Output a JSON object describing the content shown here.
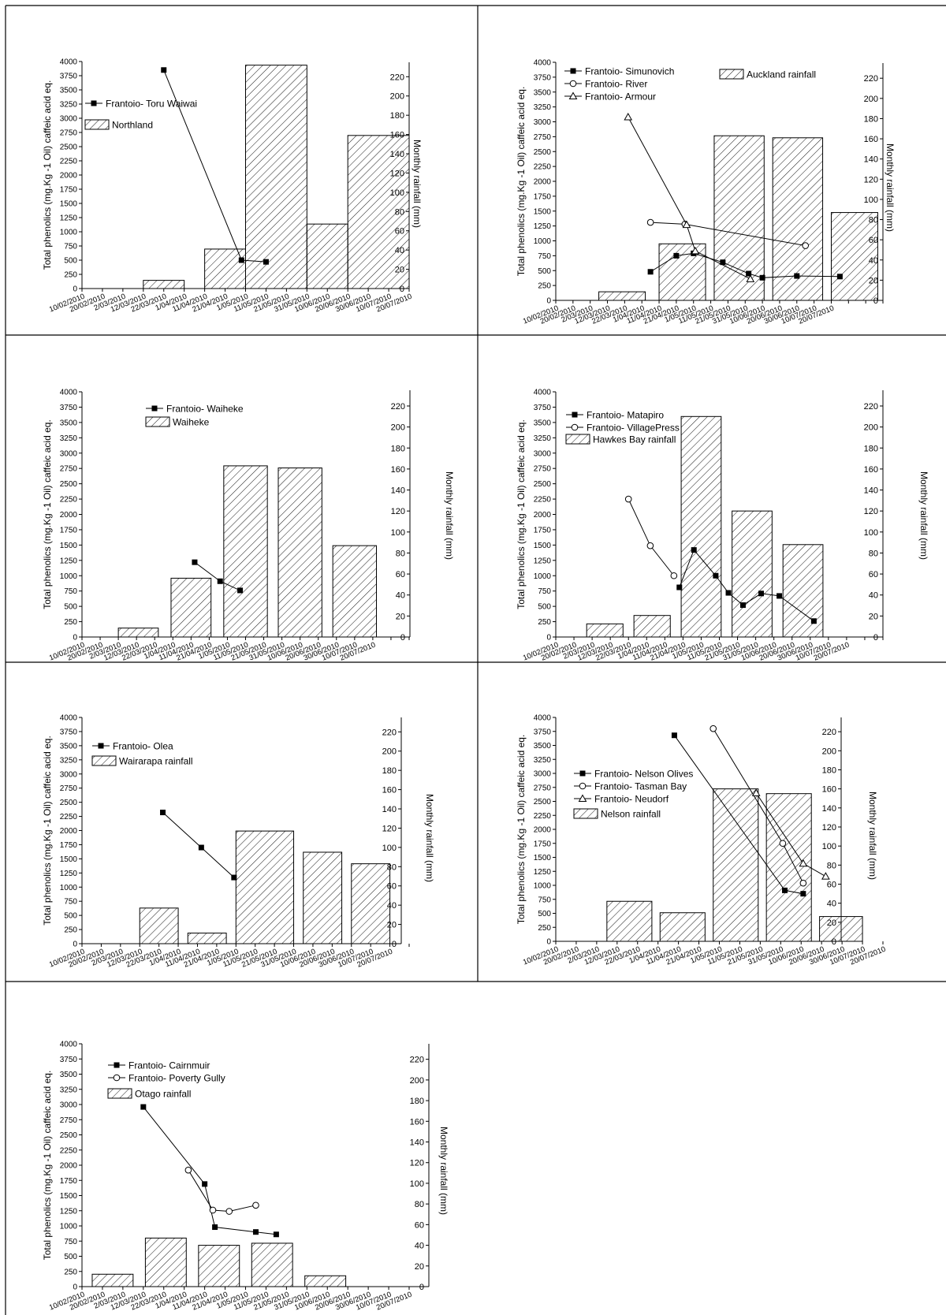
{
  "dates": [
    "10/02/2010",
    "20/02/2010",
    "2/03/2010",
    "12/03/2010",
    "22/03/2010",
    "1/04/2010",
    "11/04/2010",
    "21/04/2010",
    "1/05/2010",
    "11/05/2010",
    "21/05/2010",
    "31/05/2010",
    "10/06/2010",
    "20/06/2010",
    "30/06/2010",
    "10/07/2010",
    "20/07/2010"
  ],
  "chart_data": [
    {
      "type": "bar+line",
      "panel": "Northland",
      "ylabel": "Total phenolics (mg.Kg -1 Oil) caffeic acid eq.",
      "y2label": "Monthly rainfall (mm)",
      "ylim": [
        0,
        4000
      ],
      "y2lim": [
        0,
        235
      ],
      "rainfall": {
        "name": "Northland",
        "bars": [
          {
            "from": 3,
            "to": 5,
            "value": 8.5
          },
          {
            "from": 6,
            "to": 8,
            "value": 41
          },
          {
            "from": 8,
            "to": 11,
            "value": 232
          },
          {
            "from": 11,
            "to": 13,
            "value": 67
          },
          {
            "from": 13,
            "to": 16,
            "value": 159
          }
        ]
      },
      "series": [
        {
          "name": "Frantoio- Toru Waiwai",
          "marker": "square",
          "points": [
            [
              4,
              3850
            ],
            [
              7.8,
              500
            ],
            [
              9,
              470
            ]
          ]
        }
      ]
    },
    {
      "type": "bar+line",
      "panel": "Auckland",
      "ylabel": "Total phenolics (mg.Kg -1 Oil) caffeic acid eq.",
      "y2label": "Monthly rainfall (mm)",
      "ylim": [
        0,
        4000
      ],
      "y2lim": [
        0,
        235
      ],
      "rainfall": {
        "name": "Auckland rainfall",
        "bars": [
          {
            "from": 2.5,
            "to": 5.2,
            "value": 8.5
          },
          {
            "from": 6,
            "to": 8.7,
            "value": 56
          },
          {
            "from": 9.2,
            "to": 12.1,
            "value": 163
          },
          {
            "from": 12.6,
            "to": 15.5,
            "value": 161
          },
          {
            "from": 16,
            "to": 18.7,
            "value": 87
          }
        ]
      },
      "series": [
        {
          "name": "Frantoio- Simunovich",
          "marker": "square",
          "points": [
            [
              5.5,
              480
            ],
            [
              7,
              750
            ],
            [
              8,
              790
            ],
            [
              9.7,
              640
            ],
            [
              11.2,
              450
            ],
            [
              12,
              380
            ],
            [
              14,
              410
            ],
            [
              16.5,
              400
            ]
          ]
        },
        {
          "name": "Frantoio- River",
          "marker": "circle",
          "points": [
            [
              5.5,
              1310
            ],
            [
              7.5,
              1280
            ],
            [
              14.5,
              920
            ]
          ]
        },
        {
          "name": "Frantoio- Armour",
          "marker": "triangle",
          "points": [
            [
              4.2,
              3080
            ],
            [
              7.6,
              1270
            ],
            [
              8.1,
              830
            ],
            [
              11.3,
              360
            ]
          ]
        }
      ]
    },
    {
      "type": "bar+line",
      "panel": "Waiheke",
      "ylabel": "Total phenolics (mg.Kg -1 Oil) caffeic acid eq.",
      "y2label": "Monthly rainfall (mm)",
      "ylim": [
        0,
        4000
      ],
      "y2lim": [
        0,
        235
      ],
      "rainfall": {
        "name": "Waiheke",
        "bars": [
          {
            "from": 2,
            "to": 4.2,
            "value": 8.5
          },
          {
            "from": 4.9,
            "to": 7.1,
            "value": 56
          },
          {
            "from": 7.8,
            "to": 10.2,
            "value": 163
          },
          {
            "from": 10.8,
            "to": 13.2,
            "value": 161
          },
          {
            "from": 13.8,
            "to": 16.2,
            "value": 87
          }
        ]
      },
      "series": [
        {
          "name": "Frantoio- Waiheke",
          "marker": "square",
          "points": [
            [
              6.2,
              1220
            ],
            [
              7.6,
              910
            ],
            [
              8.7,
              760
            ]
          ]
        }
      ]
    },
    {
      "type": "bar+line",
      "panel": "Hawkes Bay",
      "ylabel": "Total phenolics (mg.Kg -1 Oil) caffeic acid eq.",
      "y2label": "Monthly rainfall (mm)",
      "ylim": [
        0,
        4000
      ],
      "y2lim": [
        0,
        235
      ],
      "rainfall": {
        "name": "Hawkes Bay rainfall",
        "bars": [
          {
            "from": 1.7,
            "to": 3.7,
            "value": 12.5
          },
          {
            "from": 4.3,
            "to": 6.3,
            "value": 20.5
          },
          {
            "from": 6.9,
            "to": 9.1,
            "value": 210
          },
          {
            "from": 9.7,
            "to": 11.9,
            "value": 120
          },
          {
            "from": 12.5,
            "to": 14.7,
            "value": 88
          }
        ]
      },
      "series": [
        {
          "name": "Frantoio- Matapiro",
          "marker": "square",
          "points": [
            [
              6.8,
              810
            ],
            [
              7.6,
              1420
            ],
            [
              8.8,
              1000
            ],
            [
              9.5,
              720
            ],
            [
              10.3,
              520
            ],
            [
              11.3,
              710
            ],
            [
              12.3,
              670
            ],
            [
              14.2,
              260
            ]
          ]
        },
        {
          "name": "Frantoio- VillagePress",
          "marker": "circle",
          "points": [
            [
              4,
              2250
            ],
            [
              5.2,
              1490
            ],
            [
              6.5,
              1000
            ]
          ]
        }
      ]
    },
    {
      "type": "bar+line",
      "panel": "Wairarapa",
      "ylabel": "Total phenolics (mg.Kg -1 Oil) caffeic acid eq.",
      "y2label": "Monthly rainfall (mm)",
      "ylim": [
        0,
        4000
      ],
      "y2lim": [
        0,
        235
      ],
      "rainfall": {
        "name": "Wairarapa rainfall",
        "bars": [
          {
            "from": 3,
            "to": 5,
            "value": 37
          },
          {
            "from": 5.5,
            "to": 7.5,
            "value": 11
          },
          {
            "from": 8,
            "to": 11,
            "value": 117
          },
          {
            "from": 11.5,
            "to": 13.5,
            "value": 95
          },
          {
            "from": 14,
            "to": 16,
            "value": 83
          }
        ]
      },
      "series": [
        {
          "name": "Frantoio- Olea",
          "marker": "square",
          "points": [
            [
              4.2,
              2320
            ],
            [
              6.2,
              1700
            ],
            [
              7.9,
              1170
            ]
          ]
        }
      ]
    },
    {
      "type": "bar+line",
      "panel": "Nelson",
      "ylabel": "Total phenolics (mg.Kg -1 Oil) caffeic acid eq.",
      "y2label": "Monthly rainfall (mm)",
      "ylim": [
        0,
        4000
      ],
      "y2lim": [
        0,
        235
      ],
      "rainfall": {
        "name": "Nelson rainfall",
        "bars": [
          {
            "from": 2.5,
            "to": 4.7,
            "value": 42
          },
          {
            "from": 5.1,
            "to": 7.3,
            "value": 30
          },
          {
            "from": 7.7,
            "to": 9.9,
            "value": 160
          },
          {
            "from": 10.3,
            "to": 12.5,
            "value": 155
          },
          {
            "from": 12.9,
            "to": 15,
            "value": 26
          }
        ]
      },
      "series": [
        {
          "name": "Frantoio- Nelson Olives",
          "marker": "square",
          "points": [
            [
              5.8,
              3680
            ],
            [
              11.2,
              910
            ],
            [
              12.1,
              850
            ]
          ]
        },
        {
          "name": "Frantoio- Tasman Bay",
          "marker": "circle",
          "points": [
            [
              7.7,
              3800
            ],
            [
              11.1,
              1750
            ],
            [
              12.1,
              1040
            ]
          ]
        },
        {
          "name": "Frantoio- Neudorf",
          "marker": "triangle",
          "points": [
            [
              9.8,
              2650
            ],
            [
              12.1,
              1390
            ],
            [
              13.2,
              1160
            ]
          ]
        }
      ]
    },
    {
      "type": "bar+line",
      "panel": "Otago",
      "ylabel": "Total phenolics (mg.Kg -1 Oil) caffeic acid eq.",
      "y2label": "Monthly rainfall (mm)",
      "ylim": [
        0,
        4000
      ],
      "y2lim": [
        0,
        235
      ],
      "rainfall": {
        "name": "Otago rainfall",
        "bars": [
          {
            "from": 0.5,
            "to": 2.5,
            "value": 12
          },
          {
            "from": 3.1,
            "to": 5.1,
            "value": 47
          },
          {
            "from": 5.7,
            "to": 7.7,
            "value": 40
          },
          {
            "from": 8.3,
            "to": 10.3,
            "value": 42
          },
          {
            "from": 10.9,
            "to": 12.9,
            "value": 10.5
          }
        ]
      },
      "series": [
        {
          "name": "Frantoio- Cairnmuir",
          "marker": "square",
          "points": [
            [
              3,
              2960
            ],
            [
              6,
              1690
            ],
            [
              6.5,
              980
            ],
            [
              8.5,
              900
            ],
            [
              9.5,
              860
            ]
          ]
        },
        {
          "name": "Frantoio- Poverty Gully",
          "marker": "circle",
          "points": [
            [
              5.2,
              1920
            ],
            [
              6.4,
              1260
            ],
            [
              7.2,
              1240
            ],
            [
              8.5,
              1340
            ]
          ]
        }
      ]
    }
  ]
}
